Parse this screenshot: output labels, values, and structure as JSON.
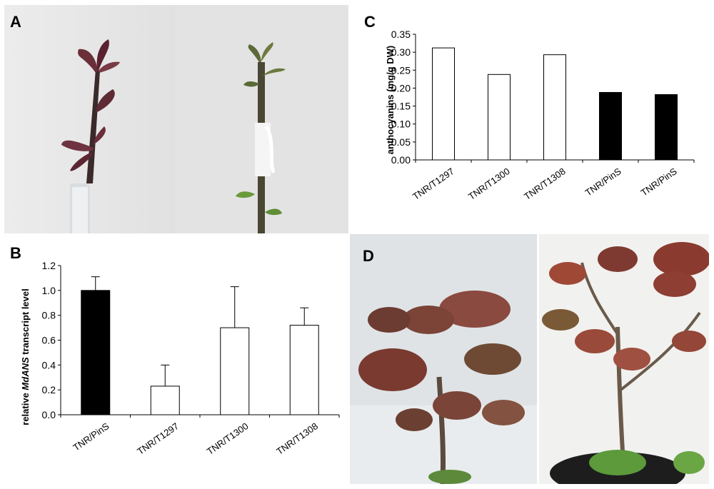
{
  "panels": {
    "a": {
      "label": "A"
    },
    "b": {
      "label": "B"
    },
    "c": {
      "label": "C"
    },
    "d": {
      "label": "D"
    }
  },
  "photos": {
    "a_left": "Grafted shoot with red-purple young leaves, wrapped graft union",
    "a_right": "Grafted shoot with green leaves and white graft wrapping",
    "d_left": "Potted plant with large red-bronze leaves",
    "d_right": "Branching plant with red leaves in a black pot"
  },
  "chart_data": [
    {
      "id": "panel-b",
      "type": "bar",
      "categories": [
        "TNR/PinS",
        "TNR/T1297",
        "TNR/T1300",
        "TNR/T1308"
      ],
      "values": [
        1.0,
        0.23,
        0.7,
        0.72
      ],
      "errors": [
        0.11,
        0.17,
        0.33,
        0.14
      ],
      "fills": [
        "#000000",
        "#ffffff",
        "#ffffff",
        "#ffffff"
      ],
      "ylabel_prefix": "relative ",
      "ylabel_italic": "MdANS",
      "ylabel_suffix": " transcript level",
      "ylim": [
        0,
        1.2
      ],
      "yticks": [
        "0.0",
        "0.2",
        "0.4",
        "0.6",
        "0.8",
        "1.0",
        "1.2"
      ],
      "grid": false
    },
    {
      "id": "panel-c",
      "type": "bar",
      "categories": [
        "TNR/T1297",
        "TNR/T1300",
        "TNR/T1308",
        "TNR/PinS",
        "TNR/PinS"
      ],
      "values": [
        0.312,
        0.238,
        0.293,
        0.188,
        0.182
      ],
      "fills": [
        "#ffffff",
        "#ffffff",
        "#ffffff",
        "#000000",
        "#000000"
      ],
      "ylabel": "anthocyanins (mg/g DW)",
      "ylim": [
        0,
        0.35
      ],
      "yticks": [
        "0.00",
        "0.05",
        "0.10",
        "0.15",
        "0.20",
        "0.25",
        "0.30",
        "0.35"
      ],
      "grid": false
    }
  ]
}
